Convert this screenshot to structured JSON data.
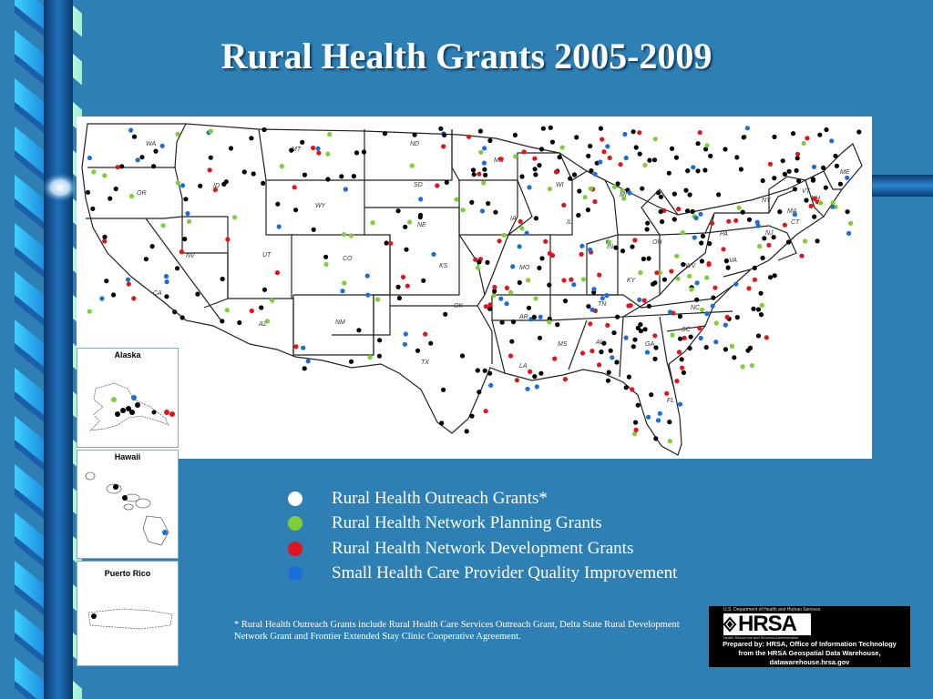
{
  "title": "Rural Health Grants 2005-2009",
  "map": {
    "state_labels": [
      "WA",
      "OR",
      "CA",
      "ID",
      "NV",
      "MT",
      "WY",
      "UT",
      "AZ",
      "CO",
      "NM",
      "ND",
      "SD",
      "NE",
      "KS",
      "OK",
      "TX",
      "MN",
      "IA",
      "MO",
      "AR",
      "LA",
      "WI",
      "IL",
      "MI",
      "IN",
      "OH",
      "KY",
      "TN",
      "MS",
      "AL",
      "GA",
      "FL",
      "SC",
      "NC",
      "VA",
      "WV",
      "PA",
      "NY",
      "ME",
      "VT",
      "NH",
      "MA",
      "CT",
      "NJ"
    ],
    "insets": {
      "alaska": "Alaska",
      "hawaii": "Hawaii",
      "puerto_rico": "Puerto Rico"
    },
    "colors": {
      "outreach": "#000000",
      "planning": "#7CCF35",
      "development": "#E0141B",
      "quality": "#1A6ED8"
    }
  },
  "legend": [
    {
      "label": "Rural Health Outreach Grants*",
      "color": "#FFFFFF"
    },
    {
      "label": "Rural Health Network Planning Grants",
      "color": "#7CCF35"
    },
    {
      "label": "Rural Health Network Development Grants",
      "color": "#E0141B"
    },
    {
      "label": "Small Health Care Provider Quality Improvement",
      "color": "#1A6ED8"
    }
  ],
  "footnote": "* Rural Health Outreach Grants include Rural Health Care Services Outreach Grant, Delta State Rural Development Network Grant and Frontier Extended Stay Clinic Cooperative Agreement.",
  "hrsa_box": {
    "agency": "U.S. Department of Health and Human Services",
    "logo_text": "HRSA",
    "subtitle": "Health Resources and Services Administration",
    "line1": "Prepared by:  HRSA, Office of Information Technology",
    "line2": "from the HRSA Geospatial Data Warehouse,",
    "line3": "datawarehouse.hrsa.gov"
  }
}
